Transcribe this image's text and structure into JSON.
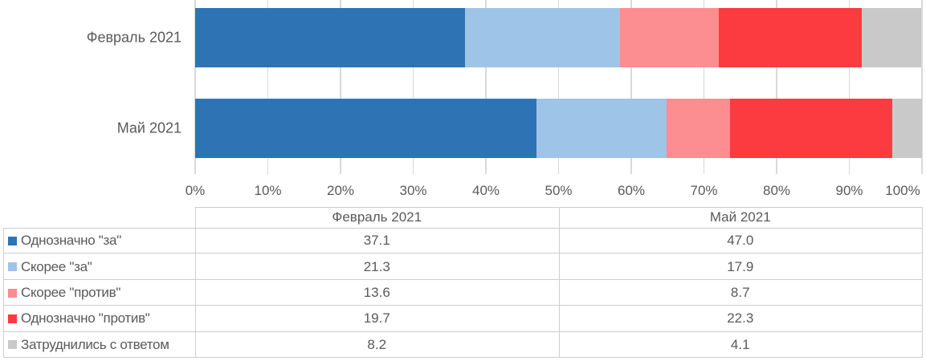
{
  "chart_data": {
    "type": "bar",
    "orientation": "horizontal",
    "stacked": true,
    "title": "",
    "categories": [
      "Февраль 2021",
      "Май 2021"
    ],
    "series": [
      {
        "name": "Однозначно \"за\"",
        "color": "#2E74B5",
        "values": [
          37.1,
          47.0
        ]
      },
      {
        "name": "Скорее \"за\"",
        "color": "#9EC4E7",
        "values": [
          21.3,
          17.9
        ]
      },
      {
        "name": "Скорее \"против\"",
        "color": "#FC8D90",
        "values": [
          13.6,
          8.7
        ]
      },
      {
        "name": "Однозначно \"против\"",
        "color": "#FB3B40",
        "values": [
          19.7,
          22.3
        ]
      },
      {
        "name": "Затруднились с ответом",
        "color": "#C9C9C9",
        "values": [
          8.2,
          4.1
        ]
      }
    ],
    "x_axis": {
      "min": 0,
      "max": 100,
      "ticks": [
        "0%",
        "10%",
        "20%",
        "30%",
        "40%",
        "50%",
        "60%",
        "70%",
        "80%",
        "90%",
        "100%"
      ]
    },
    "grid": true,
    "legend_position": "data-table-left-column"
  },
  "table": {
    "column_headers": [
      "Февраль 2021",
      "Май 2021"
    ],
    "rows": [
      {
        "label": "Однозначно \"за\"",
        "color": "#2E74B5",
        "values": [
          "37.1",
          "47.0"
        ]
      },
      {
        "label": "Скорее \"за\"",
        "color": "#9EC4E7",
        "values": [
          "21.3",
          "17.9"
        ]
      },
      {
        "label": "Скорее \"против\"",
        "color": "#FC8D90",
        "values": [
          "13.6",
          "8.7"
        ]
      },
      {
        "label": "Однозначно \"против\"",
        "color": "#FB3B40",
        "values": [
          "19.7",
          "22.3"
        ]
      },
      {
        "label": "Затруднились с ответом",
        "color": "#C9C9C9",
        "values": [
          "8.2",
          "4.1"
        ]
      }
    ]
  },
  "colors": {
    "text": "#595959",
    "gridline": "#D9D9D9",
    "table_border": "#CDCDCD",
    "background": "#FFFFFF"
  }
}
